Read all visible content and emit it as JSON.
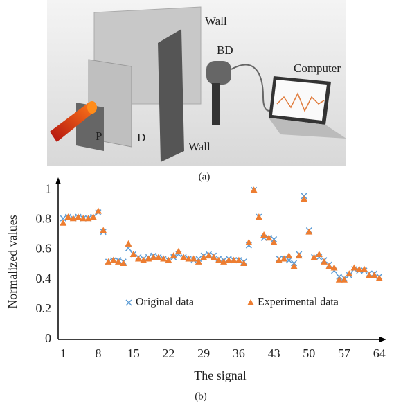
{
  "illustration": {
    "labels": {
      "wall_back": "Wall",
      "bd": "BD",
      "computer": "Computer",
      "p": "P",
      "d": "D",
      "wall_front": "Wall"
    },
    "caption": "(a)"
  },
  "caption": "(b)",
  "chart_data": {
    "type": "scatter",
    "xlabel": "The signal",
    "ylabel": "Normalized values",
    "x": [
      1,
      2,
      3,
      4,
      5,
      6,
      7,
      8,
      9,
      10,
      11,
      12,
      13,
      14,
      15,
      16,
      17,
      18,
      19,
      20,
      21,
      22,
      23,
      24,
      25,
      26,
      27,
      28,
      29,
      30,
      31,
      32,
      33,
      34,
      35,
      36,
      37,
      38,
      39,
      40,
      41,
      42,
      43,
      44,
      45,
      46,
      47,
      48,
      49,
      50,
      51,
      52,
      53,
      54,
      55,
      56,
      57,
      58,
      59,
      60,
      61,
      62,
      63,
      64
    ],
    "series": [
      {
        "name": "Original data",
        "color": "#5b9bd5",
        "marker": "x",
        "values": [
          0.81,
          0.82,
          0.81,
          0.82,
          0.81,
          0.81,
          0.82,
          0.85,
          0.72,
          0.52,
          0.53,
          0.53,
          0.52,
          0.61,
          0.57,
          0.55,
          0.54,
          0.55,
          0.56,
          0.55,
          0.54,
          0.53,
          0.55,
          0.57,
          0.55,
          0.54,
          0.53,
          0.54,
          0.56,
          0.57,
          0.56,
          0.54,
          0.53,
          0.54,
          0.53,
          0.53,
          0.52,
          0.63,
          1.0,
          0.82,
          0.68,
          0.68,
          0.67,
          0.54,
          0.54,
          0.53,
          0.51,
          0.57,
          0.96,
          0.73,
          0.55,
          0.55,
          0.53,
          0.5,
          0.46,
          0.42,
          0.41,
          0.43,
          0.47,
          0.46,
          0.46,
          0.44,
          0.44,
          0.42
        ]
      },
      {
        "name": "Experimental data",
        "color": "#ed7d31",
        "marker": "triangle",
        "values": [
          0.78,
          0.82,
          0.81,
          0.82,
          0.81,
          0.81,
          0.82,
          0.86,
          0.73,
          0.52,
          0.53,
          0.52,
          0.51,
          0.64,
          0.57,
          0.54,
          0.53,
          0.54,
          0.55,
          0.55,
          0.54,
          0.53,
          0.56,
          0.59,
          0.55,
          0.54,
          0.54,
          0.52,
          0.55,
          0.56,
          0.55,
          0.53,
          0.52,
          0.53,
          0.53,
          0.53,
          0.51,
          0.65,
          1.0,
          0.82,
          0.7,
          0.68,
          0.65,
          0.53,
          0.54,
          0.56,
          0.49,
          0.56,
          0.94,
          0.72,
          0.55,
          0.57,
          0.52,
          0.49,
          0.48,
          0.4,
          0.4,
          0.44,
          0.48,
          0.47,
          0.47,
          0.43,
          0.43,
          0.41
        ]
      }
    ],
    "xlim": [
      0,
      65
    ],
    "ylim": [
      0,
      1.08
    ],
    "xticks": [
      1,
      8,
      15,
      22,
      29,
      36,
      43,
      50,
      57,
      64
    ],
    "yticks": [
      0,
      0.2,
      0.4,
      0.6,
      0.8,
      1
    ],
    "legend": "lower center",
    "grid": false
  }
}
